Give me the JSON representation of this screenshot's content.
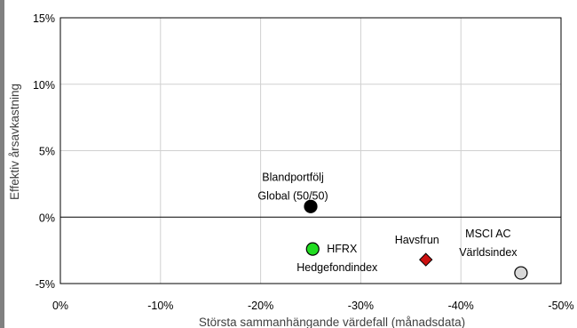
{
  "chart_data": {
    "type": "scatter",
    "title": "",
    "xlabel": "Största sammanhängande värdefall (månadsdata)",
    "ylabel": "Effektiv årsavkastning",
    "xlim": [
      0,
      -50
    ],
    "ylim": [
      -5,
      15
    ],
    "x_ticks": [
      0,
      -10,
      -20,
      -30,
      -40,
      -50
    ],
    "x_tick_labels": [
      "0%",
      "-10%",
      "-20%",
      "-30%",
      "-40%",
      "-50%"
    ],
    "y_ticks": [
      -5,
      0,
      5,
      10,
      15
    ],
    "y_tick_labels": [
      "-5%",
      "0%",
      "5%",
      "10%",
      "15%"
    ],
    "grid": true,
    "points": [
      {
        "x": -25.0,
        "y": 0.8,
        "marker": "circle",
        "fill": "#000000",
        "label_lines": [
          "Blandportfölj",
          "Global (50/50)"
        ]
      },
      {
        "x": -25.2,
        "y": -2.4,
        "marker": "circle",
        "fill": "#22dd22",
        "label_lines": [
          "HFRX",
          "Hedgefondindex"
        ]
      },
      {
        "x": -36.5,
        "y": -3.2,
        "marker": "diamond",
        "fill": "#cc1111",
        "label_lines": [
          "Havsfrun"
        ]
      },
      {
        "x": -46.0,
        "y": -4.2,
        "marker": "circle",
        "fill": "#d8d8d8",
        "label_lines": [
          "MSCI AC",
          "Världsindex"
        ]
      }
    ]
  }
}
